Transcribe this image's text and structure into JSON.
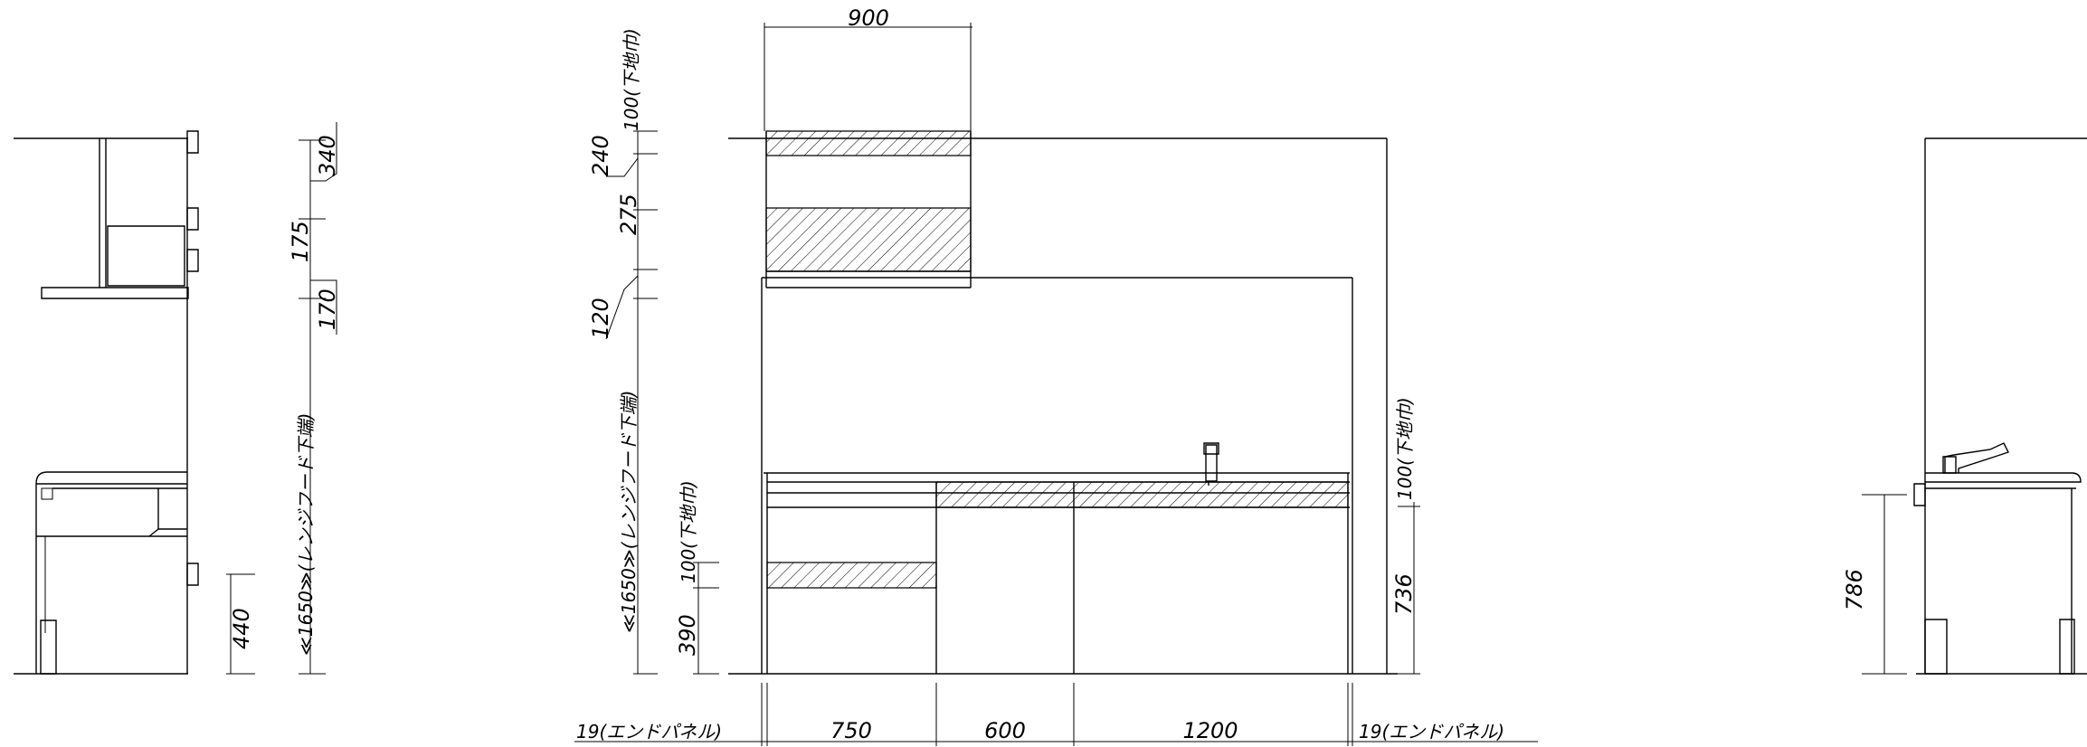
{
  "drawing": {
    "top_width": "900",
    "upper_dims": {
      "base_100_a": "100(下地巾)",
      "d240": "240",
      "d340": "340",
      "d175": "175",
      "d275": "275",
      "d170": "170",
      "d120": "120"
    },
    "hood_height_left": "≪1650≫(レンジフード下端)",
    "hood_height_center": "≪1650≫(レンジフード下端)",
    "lower_dims": {
      "base_100_b": "100(下地巾)",
      "d390": "390",
      "d440": "440"
    },
    "right_dims": {
      "base_100_c": "100(下地巾)",
      "d736": "736",
      "d786": "786"
    },
    "bottom_dims": {
      "end_panel_left": "19(エンドパネル)",
      "w750": "750",
      "w600": "600",
      "w1200": "1200",
      "end_panel_right": "19(エンドパネル)"
    }
  }
}
